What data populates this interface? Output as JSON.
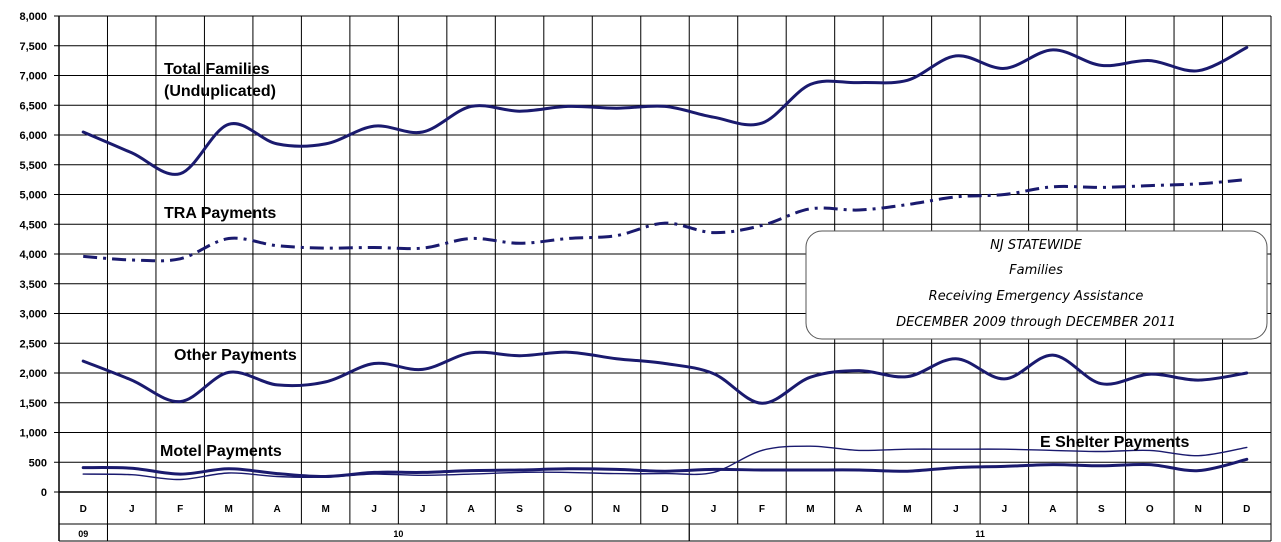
{
  "chart_data": {
    "type": "line",
    "ylim": [
      0,
      8000
    ],
    "yticks": [
      "0",
      "500",
      "1,000",
      "1,500",
      "2,000",
      "2,500",
      "3,000",
      "3,500",
      "4,000",
      "4,500",
      "5,000",
      "5,500",
      "6,000",
      "6,500",
      "7,000",
      "7,500",
      "8,000"
    ],
    "categories": [
      "D",
      "J",
      "F",
      "M",
      "A",
      "M",
      "J",
      "J",
      "A",
      "S",
      "O",
      "N",
      "D",
      "J",
      "F",
      "M",
      "A",
      "M",
      "J",
      "J",
      "A",
      "S",
      "O",
      "N",
      "D"
    ],
    "year_labels": [
      {
        "label": "09",
        "from": 0,
        "to": 0
      },
      {
        "label": "10",
        "from": 1,
        "to": 12
      },
      {
        "label": "11",
        "from": 13,
        "to": 24
      }
    ],
    "grid": true,
    "info_box": {
      "lines": [
        "NJ STATEWIDE",
        "Families",
        "Receiving Emergency Assistance",
        "DECEMBER 2009 through DECEMBER 2011"
      ]
    },
    "series": [
      {
        "name": "Total Families (Unduplicated)",
        "label_lines": [
          "Total Families",
          "(Unduplicated)"
        ],
        "color": "#1a1a6e",
        "style": "solid",
        "values": [
          6050,
          5700,
          5350,
          6180,
          5850,
          5850,
          6150,
          6050,
          6480,
          6400,
          6480,
          6450,
          6480,
          6300,
          6200,
          6850,
          6880,
          6920,
          7330,
          7120,
          7430,
          7170,
          7250,
          7080,
          7470
        ]
      },
      {
        "name": "TRA Payments",
        "label_lines": [
          "TRA Payments"
        ],
        "color": "#1a1a6e",
        "style": "dashdot",
        "values": [
          3960,
          3900,
          3920,
          4260,
          4140,
          4100,
          4110,
          4100,
          4260,
          4180,
          4260,
          4310,
          4520,
          4360,
          4480,
          4760,
          4740,
          4830,
          4960,
          5000,
          5130,
          5120,
          5150,
          5180,
          5250
        ]
      },
      {
        "name": "Other Payments",
        "label_lines": [
          "Other Payments"
        ],
        "color": "#1a1a6e",
        "style": "solid",
        "values": [
          2200,
          1880,
          1520,
          2010,
          1800,
          1850,
          2160,
          2060,
          2340,
          2290,
          2350,
          2240,
          2160,
          1990,
          1490,
          1930,
          2040,
          1940,
          2240,
          1900,
          2300,
          1820,
          1980,
          1880,
          2000
        ]
      },
      {
        "name": "Motel Payments",
        "label_lines": [
          "Motel Payments"
        ],
        "color": "#1a1a6e",
        "style": "solid",
        "values": [
          410,
          400,
          300,
          390,
          310,
          260,
          330,
          330,
          360,
          370,
          390,
          380,
          350,
          380,
          370,
          370,
          370,
          350,
          410,
          430,
          460,
          440,
          460,
          360,
          550
        ]
      },
      {
        "name": "E Shelter Payments",
        "label_lines": [
          "E Shelter Payments"
        ],
        "color": "#1a1a6e",
        "style": "thin",
        "values": [
          300,
          290,
          210,
          320,
          260,
          250,
          300,
          280,
          300,
          330,
          330,
          310,
          310,
          330,
          700,
          770,
          700,
          720,
          720,
          720,
          700,
          680,
          700,
          610,
          750
        ]
      }
    ]
  }
}
